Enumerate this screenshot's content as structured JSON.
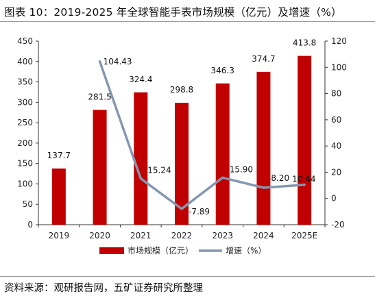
{
  "title": "图表 10：2019-2025 年全球智能手表市场规模（亿元）及增速（%）",
  "source": "资料来源：观研报告网，五矿证券研究所整理",
  "chart_data": {
    "type": "bar",
    "categories": [
      "2019",
      "2020",
      "2021",
      "2022",
      "2023",
      "2024",
      "2025E"
    ],
    "series": [
      {
        "name": "市场规模（亿元）",
        "type": "bar",
        "axis": "left",
        "values": [
          137.7,
          281.5,
          324.4,
          298.8,
          346.3,
          374.7,
          413.8
        ],
        "labels": [
          "137.7",
          "281.5",
          "324.4",
          "298.8",
          "346.3",
          "374.7",
          "413.8"
        ],
        "color": "#c00000"
      },
      {
        "name": "增速（%）",
        "type": "line",
        "axis": "right",
        "values": [
          null,
          104.43,
          15.24,
          -7.89,
          15.9,
          8.2,
          10.44
        ],
        "labels": [
          "",
          "104.43",
          "15.24",
          "-7.89",
          "15.90",
          "8.20",
          "10.44"
        ],
        "color": "#8497b0"
      }
    ],
    "y_left": {
      "ylim": [
        0,
        450
      ],
      "ticks": [
        "0",
        "50",
        "100",
        "150",
        "200",
        "250",
        "300",
        "350",
        "400",
        "450"
      ]
    },
    "y_right": {
      "ylim": [
        -20,
        120
      ],
      "ticks": [
        "-20",
        "0",
        "20",
        "40",
        "60",
        "80",
        "100",
        "120"
      ]
    },
    "legend_position": "bottom",
    "grid": false
  }
}
